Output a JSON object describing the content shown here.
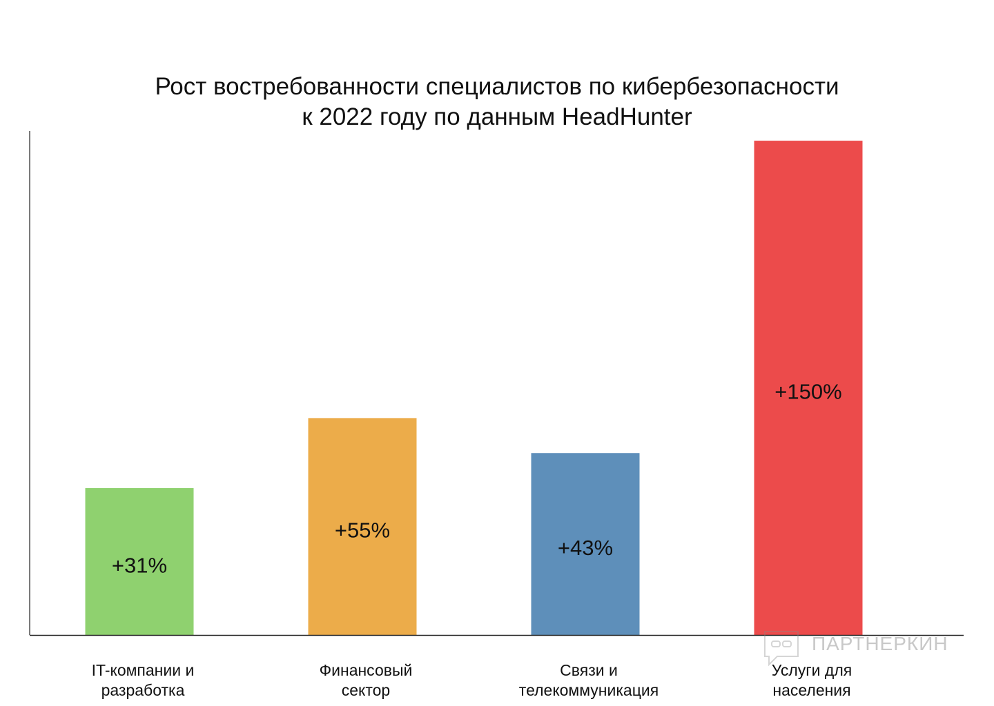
{
  "chart_data": {
    "type": "bar",
    "title_line1": "Рост востребованности специалистов по кибербезопасности",
    "title_line2": "к 2022 году по данным HeadHunter",
    "categories": [
      "IT-компании и разработка",
      "Финансовый сектор",
      "Связи и телекоммуникация",
      "Услуги для населения"
    ],
    "category_lines": [
      [
        "IT-компании и",
        "разработка"
      ],
      [
        "Финансовый",
        "сектор"
      ],
      [
        "Связи и",
        "телекоммуникация"
      ],
      [
        "Услуги для",
        "населения"
      ]
    ],
    "values": [
      31,
      55,
      43,
      150
    ],
    "data_labels": [
      "+31%",
      "+55%",
      "+43%",
      "+150%"
    ],
    "colors": [
      "#8fd16f",
      "#ecac4a",
      "#5e8fba",
      "#ec4b4b"
    ],
    "xlabel": "",
    "ylabel": "",
    "unit": "%",
    "grid": false,
    "legend": "none"
  },
  "watermark": "ПАРТНЕРКИН"
}
